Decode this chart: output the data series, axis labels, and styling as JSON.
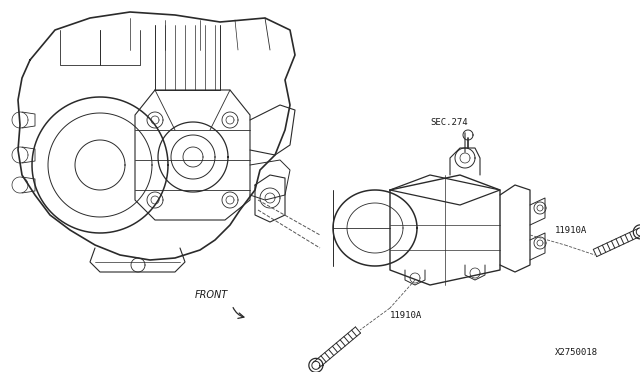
{
  "background_color": "#ffffff",
  "line_color": "#2a2a2a",
  "dashed_color": "#555555",
  "text_color": "#1a1a1a",
  "labels": {
    "sec274": "SEC.274",
    "11910A_right": "11910A",
    "11910A_bottom": "11910A",
    "front": "FRONT",
    "part_num": "X2750018"
  },
  "figsize": [
    6.4,
    3.72
  ],
  "dpi": 100
}
